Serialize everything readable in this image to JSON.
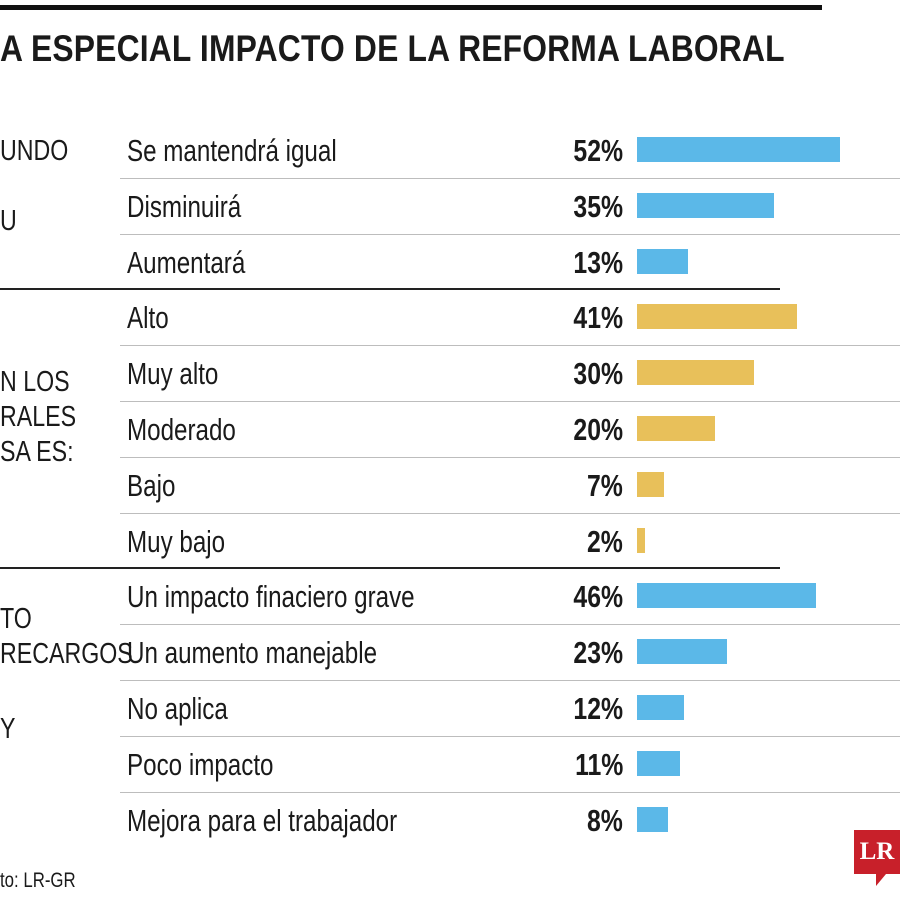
{
  "title": "A ESPECIAL IMPACTO DE LA REFORMA LABORAL",
  "side_labels": {
    "group1": [
      "UNDO",
      "U"
    ],
    "group2": [
      "N LOS",
      "RALES",
      "SA ES:"
    ],
    "group3": [
      "TO",
      "RECARGOS",
      "Y"
    ]
  },
  "source": "to: LR-GR",
  "logo_text": "LR",
  "colors": {
    "blue": "#5bb8e8",
    "yellow": "#e8c05a",
    "logo": "#c8202a"
  },
  "chart_data": {
    "type": "bar",
    "orientation": "horizontal",
    "unit": "%",
    "groups": [
      {
        "color": "#5bb8e8",
        "categories": [
          "Se mantendrá igual",
          "Disminuirá",
          "Aumentará"
        ],
        "values": [
          52,
          35,
          13
        ]
      },
      {
        "color": "#e8c05a",
        "categories": [
          "Alto",
          "Muy alto",
          "Moderado",
          "Bajo",
          "Muy bajo"
        ],
        "values": [
          41,
          30,
          20,
          7,
          2
        ]
      },
      {
        "color": "#5bb8e8",
        "categories": [
          "Un impacto finaciero grave",
          "Un aumento manejable",
          "No aplica",
          "Poco impacto",
          "Mejora para el trabajador"
        ],
        "values": [
          46,
          23,
          12,
          11,
          8
        ]
      }
    ]
  }
}
